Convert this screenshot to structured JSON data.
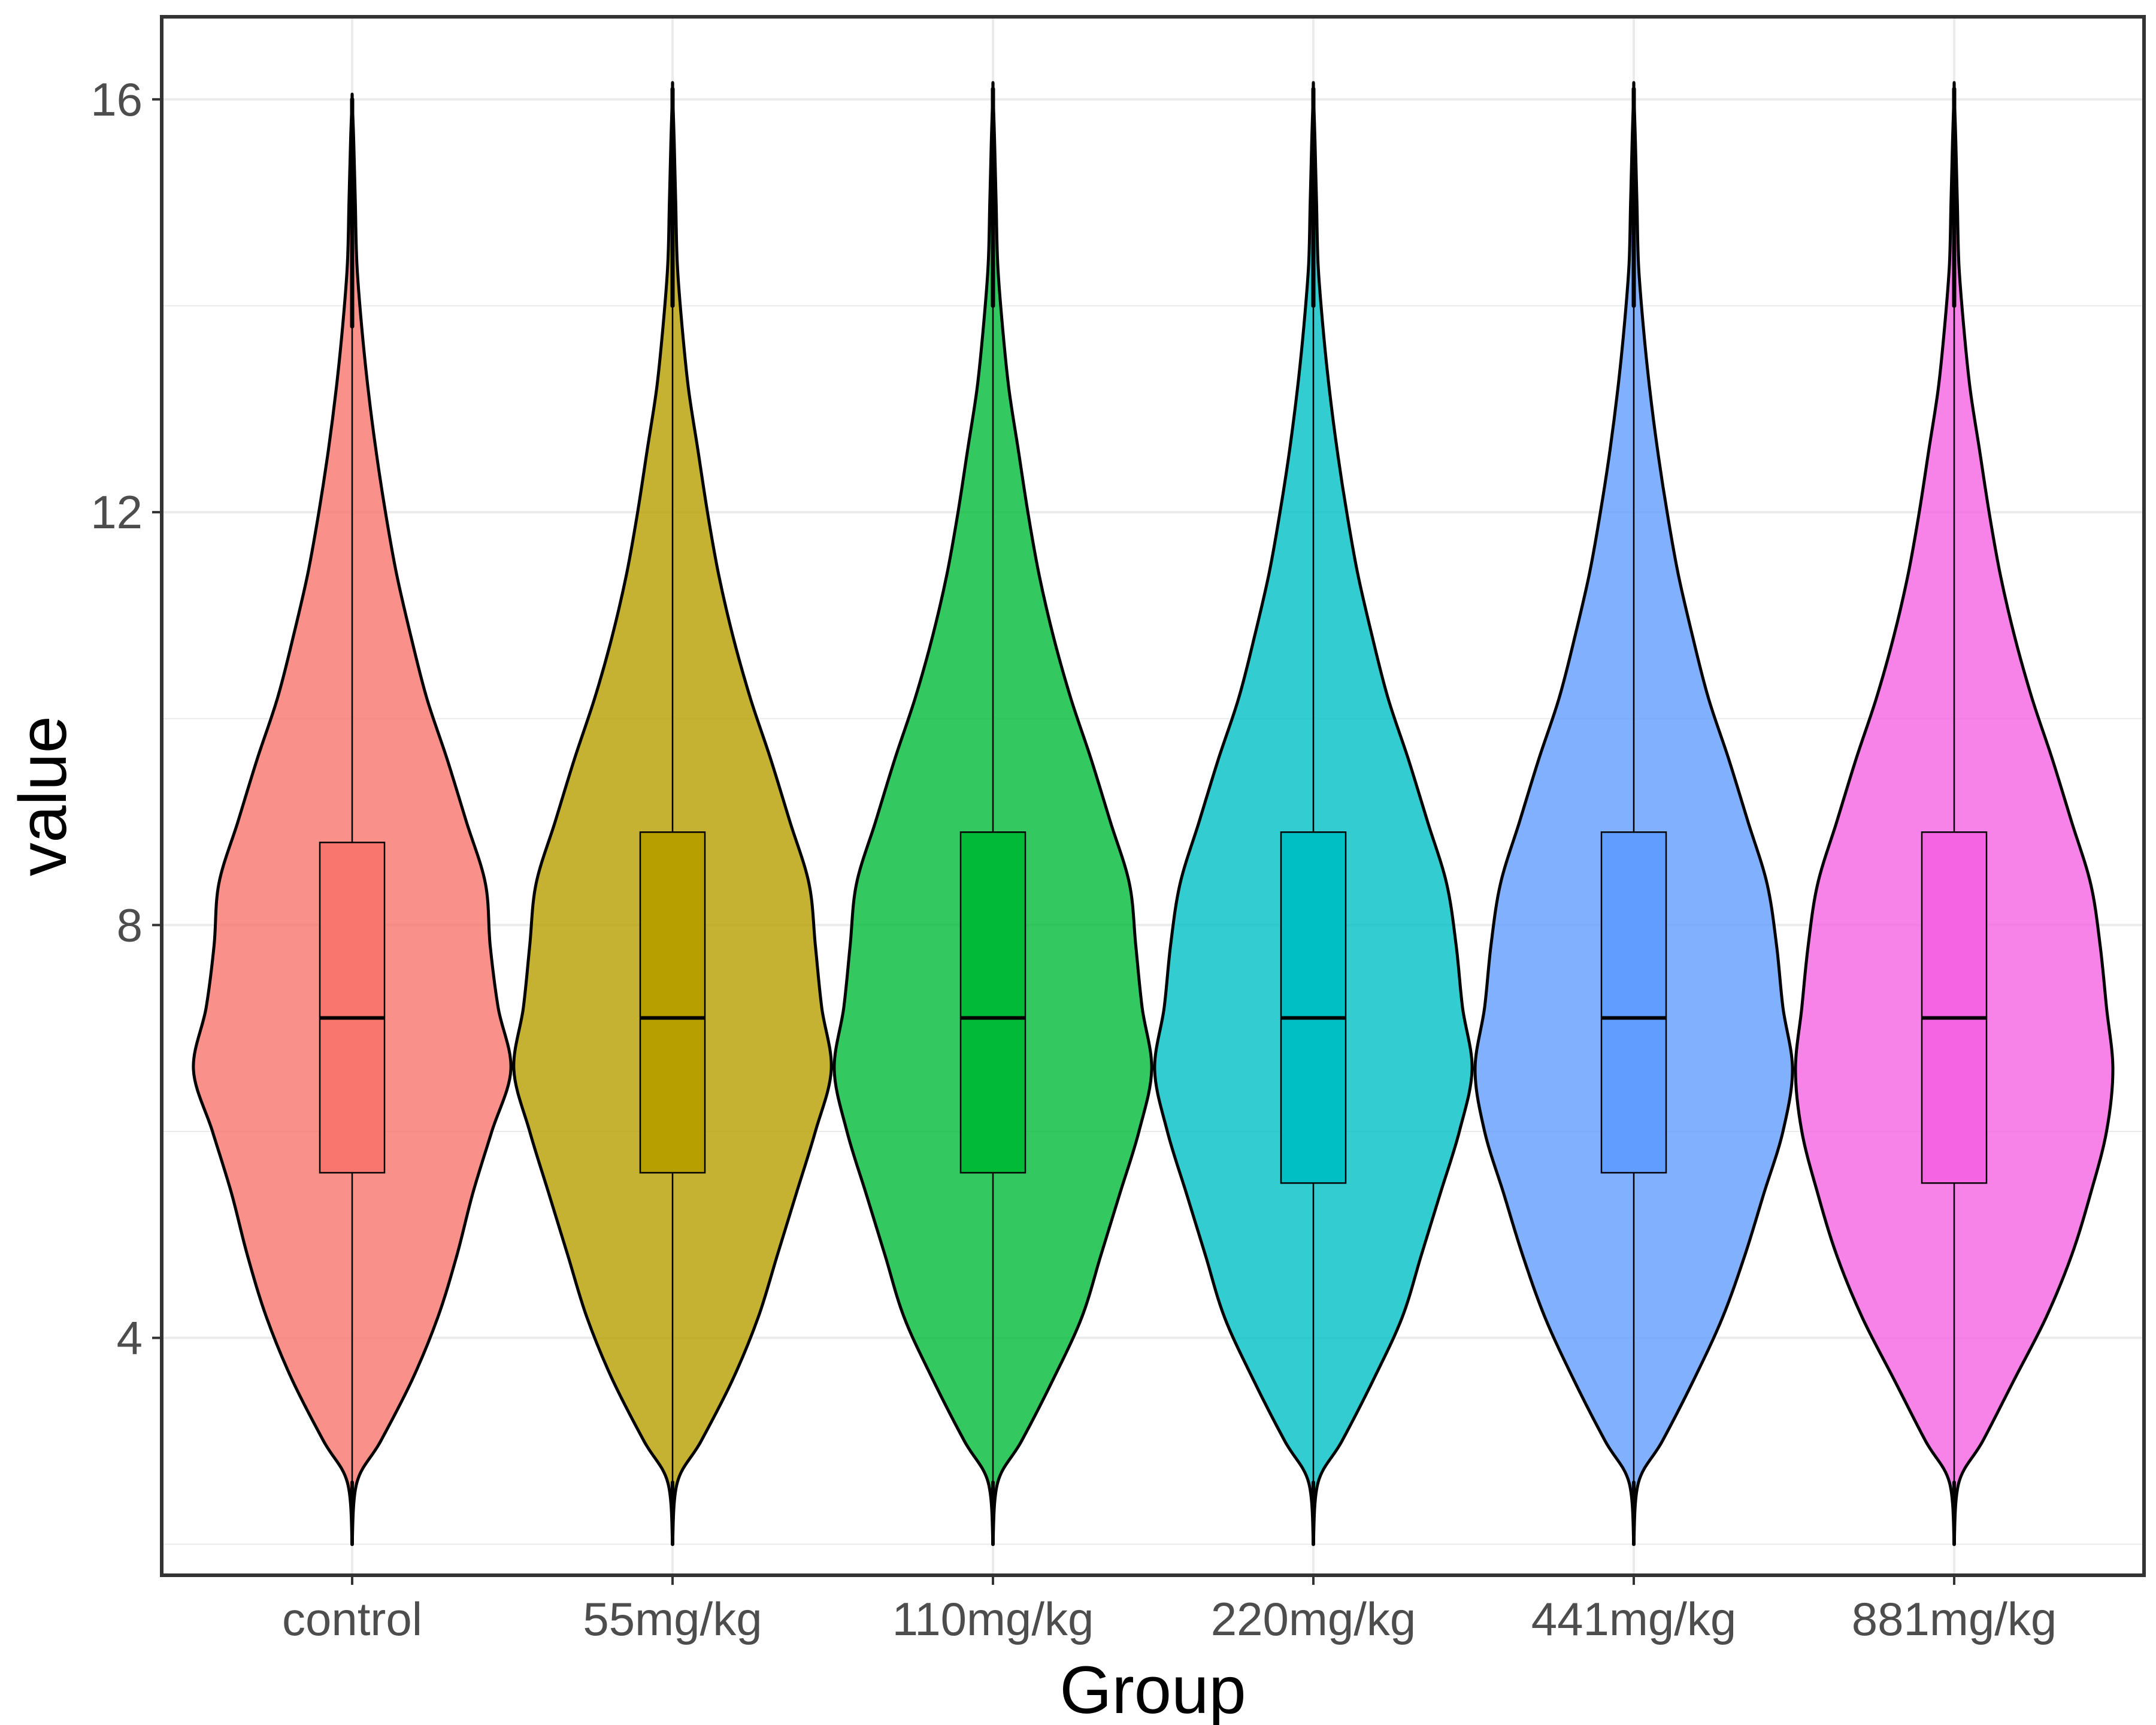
{
  "chart_data": {
    "type": "violin",
    "title": "",
    "xlabel": "Group",
    "ylabel": "value",
    "ylim": [
      1.7,
      16.8
    ],
    "y_ticks": [
      4,
      8,
      12,
      16
    ],
    "grid": true,
    "legend": "none",
    "categories": [
      "control",
      "55mg/kg",
      "110mg/kg",
      "220mg/kg",
      "441mg/kg",
      "881mg/kg"
    ],
    "series": [
      {
        "category": "control",
        "color": "#F8766D",
        "min": 2.0,
        "q1": 5.6,
        "median": 7.1,
        "q3": 8.8,
        "max": 16.0,
        "box_whisker_top": 13.8,
        "violin_halfwidth_profile": [
          [
            2.0,
            0.0
          ],
          [
            2.6,
            0.03
          ],
          [
            3.0,
            0.18
          ],
          [
            3.6,
            0.38
          ],
          [
            4.2,
            0.54
          ],
          [
            4.8,
            0.66
          ],
          [
            5.4,
            0.76
          ],
          [
            6.0,
            0.88
          ],
          [
            6.6,
            1.0
          ],
          [
            7.2,
            0.92
          ],
          [
            7.8,
            0.87
          ],
          [
            8.4,
            0.84
          ],
          [
            9.0,
            0.72
          ],
          [
            9.6,
            0.6
          ],
          [
            10.2,
            0.47
          ],
          [
            10.8,
            0.37
          ],
          [
            11.4,
            0.28
          ],
          [
            12.0,
            0.21
          ],
          [
            12.6,
            0.15
          ],
          [
            13.2,
            0.1
          ],
          [
            13.8,
            0.06
          ],
          [
            14.4,
            0.03
          ],
          [
            15.0,
            0.02
          ],
          [
            15.6,
            0.01
          ],
          [
            16.0,
            0.0
          ]
        ]
      },
      {
        "category": "55mg/kg",
        "color": "#B79F00",
        "min": 2.0,
        "q1": 5.6,
        "median": 7.1,
        "q3": 8.9,
        "max": 16.1,
        "box_whisker_top": 14.0,
        "violin_halfwidth_profile": [
          [
            2.0,
            0.0
          ],
          [
            2.6,
            0.03
          ],
          [
            3.0,
            0.18
          ],
          [
            3.6,
            0.38
          ],
          [
            4.2,
            0.54
          ],
          [
            4.8,
            0.66
          ],
          [
            5.4,
            0.78
          ],
          [
            6.0,
            0.9
          ],
          [
            6.6,
            1.0
          ],
          [
            7.2,
            0.94
          ],
          [
            7.8,
            0.9
          ],
          [
            8.4,
            0.86
          ],
          [
            9.0,
            0.74
          ],
          [
            9.6,
            0.62
          ],
          [
            10.2,
            0.49
          ],
          [
            10.8,
            0.38
          ],
          [
            11.4,
            0.29
          ],
          [
            12.0,
            0.22
          ],
          [
            12.6,
            0.16
          ],
          [
            13.2,
            0.1
          ],
          [
            13.8,
            0.06
          ],
          [
            14.4,
            0.03
          ],
          [
            15.0,
            0.02
          ],
          [
            15.6,
            0.01
          ],
          [
            16.1,
            0.0
          ]
        ]
      },
      {
        "category": "110mg/kg",
        "color": "#00BA38",
        "min": 2.0,
        "q1": 5.6,
        "median": 7.1,
        "q3": 8.9,
        "max": 16.1,
        "box_whisker_top": 14.0,
        "violin_halfwidth_profile": [
          [
            2.0,
            0.0
          ],
          [
            2.6,
            0.03
          ],
          [
            3.0,
            0.18
          ],
          [
            3.6,
            0.38
          ],
          [
            4.2,
            0.56
          ],
          [
            4.8,
            0.68
          ],
          [
            5.4,
            0.8
          ],
          [
            6.0,
            0.92
          ],
          [
            6.6,
            1.0
          ],
          [
            7.2,
            0.94
          ],
          [
            7.8,
            0.9
          ],
          [
            8.4,
            0.86
          ],
          [
            9.0,
            0.74
          ],
          [
            9.6,
            0.62
          ],
          [
            10.2,
            0.49
          ],
          [
            10.8,
            0.38
          ],
          [
            11.4,
            0.29
          ],
          [
            12.0,
            0.22
          ],
          [
            12.6,
            0.16
          ],
          [
            13.2,
            0.1
          ],
          [
            13.8,
            0.06
          ],
          [
            14.4,
            0.03
          ],
          [
            15.0,
            0.02
          ],
          [
            15.6,
            0.01
          ],
          [
            16.1,
            0.0
          ]
        ]
      },
      {
        "category": "220mg/kg",
        "color": "#00BFC4",
        "min": 2.0,
        "q1": 5.5,
        "median": 7.1,
        "q3": 8.9,
        "max": 16.1,
        "box_whisker_top": 14.0,
        "violin_halfwidth_profile": [
          [
            2.0,
            0.0
          ],
          [
            2.6,
            0.03
          ],
          [
            3.0,
            0.18
          ],
          [
            3.6,
            0.38
          ],
          [
            4.2,
            0.56
          ],
          [
            4.8,
            0.68
          ],
          [
            5.4,
            0.8
          ],
          [
            6.0,
            0.92
          ],
          [
            6.6,
            1.0
          ],
          [
            7.2,
            0.94
          ],
          [
            7.8,
            0.9
          ],
          [
            8.4,
            0.84
          ],
          [
            9.0,
            0.72
          ],
          [
            9.6,
            0.6
          ],
          [
            10.2,
            0.47
          ],
          [
            10.8,
            0.37
          ],
          [
            11.4,
            0.28
          ],
          [
            12.0,
            0.21
          ],
          [
            12.6,
            0.15
          ],
          [
            13.2,
            0.1
          ],
          [
            13.8,
            0.06
          ],
          [
            14.4,
            0.03
          ],
          [
            15.0,
            0.02
          ],
          [
            15.6,
            0.01
          ],
          [
            16.1,
            0.0
          ]
        ]
      },
      {
        "category": "441mg/kg",
        "color": "#619CFF",
        "min": 2.0,
        "q1": 5.6,
        "median": 7.1,
        "q3": 8.9,
        "max": 16.1,
        "box_whisker_top": 14.0,
        "violin_halfwidth_profile": [
          [
            2.0,
            0.0
          ],
          [
            2.6,
            0.03
          ],
          [
            3.0,
            0.18
          ],
          [
            3.6,
            0.38
          ],
          [
            4.2,
            0.56
          ],
          [
            4.8,
            0.7
          ],
          [
            5.4,
            0.82
          ],
          [
            6.0,
            0.94
          ],
          [
            6.6,
            1.0
          ],
          [
            7.2,
            0.94
          ],
          [
            7.8,
            0.9
          ],
          [
            8.4,
            0.84
          ],
          [
            9.0,
            0.72
          ],
          [
            9.6,
            0.6
          ],
          [
            10.2,
            0.47
          ],
          [
            10.8,
            0.37
          ],
          [
            11.4,
            0.28
          ],
          [
            12.0,
            0.21
          ],
          [
            12.6,
            0.15
          ],
          [
            13.2,
            0.1
          ],
          [
            13.8,
            0.06
          ],
          [
            14.4,
            0.03
          ],
          [
            15.0,
            0.02
          ],
          [
            15.6,
            0.01
          ],
          [
            16.1,
            0.0
          ]
        ]
      },
      {
        "category": "881mg/kg",
        "color": "#F564E3",
        "min": 2.0,
        "q1": 5.5,
        "median": 7.1,
        "q3": 8.9,
        "max": 16.1,
        "box_whisker_top": 14.0,
        "violin_halfwidth_profile": [
          [
            2.0,
            0.0
          ],
          [
            2.6,
            0.03
          ],
          [
            3.0,
            0.18
          ],
          [
            3.6,
            0.38
          ],
          [
            4.2,
            0.58
          ],
          [
            4.8,
            0.74
          ],
          [
            5.4,
            0.86
          ],
          [
            6.0,
            0.96
          ],
          [
            6.6,
            1.0
          ],
          [
            7.2,
            0.96
          ],
          [
            7.8,
            0.92
          ],
          [
            8.4,
            0.86
          ],
          [
            9.0,
            0.74
          ],
          [
            9.6,
            0.62
          ],
          [
            10.2,
            0.49
          ],
          [
            10.8,
            0.38
          ],
          [
            11.4,
            0.29
          ],
          [
            12.0,
            0.22
          ],
          [
            12.6,
            0.16
          ],
          [
            13.2,
            0.1
          ],
          [
            13.8,
            0.06
          ],
          [
            14.4,
            0.03
          ],
          [
            15.0,
            0.02
          ],
          [
            15.6,
            0.01
          ],
          [
            16.1,
            0.0
          ]
        ]
      }
    ]
  }
}
